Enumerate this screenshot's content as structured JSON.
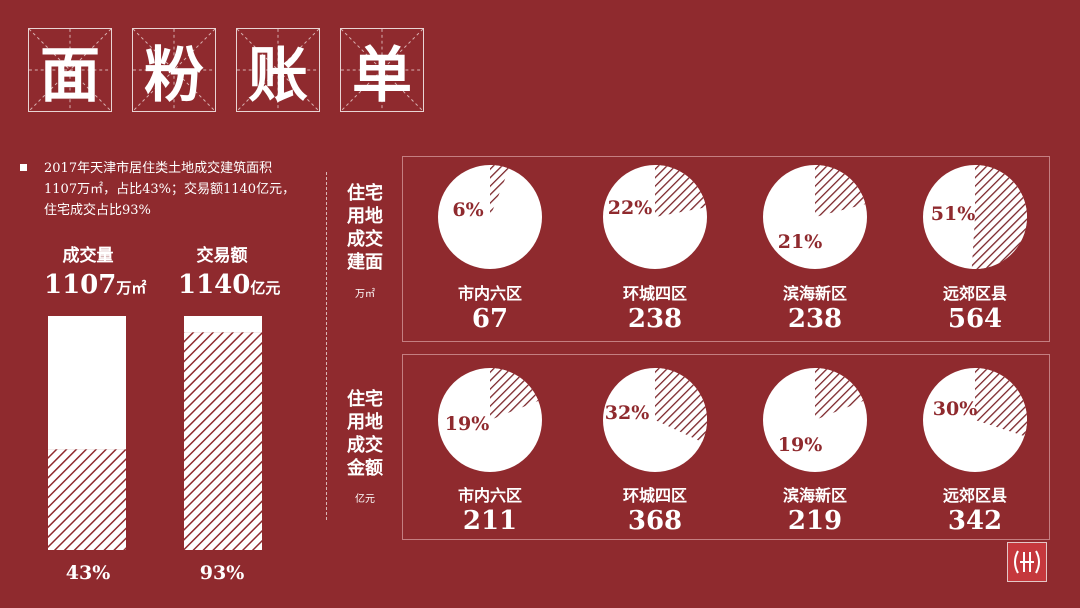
{
  "title_chars": [
    "面",
    "粉",
    "账",
    "单"
  ],
  "description": "2017年天津市居住类土地成交建筑面积1107万㎡，占比43%；交易额1140亿元，住宅成交占比93%",
  "colors": {
    "background": "#8f2a2e",
    "white": "#ffffff",
    "hatch": "#7a2428"
  },
  "left_stats": [
    {
      "label": "成交量",
      "value": "1107",
      "unit": "万㎡",
      "percent": "43%",
      "ratio": 0.43
    },
    {
      "label": "交易额",
      "value": "1140",
      "unit": "亿元",
      "percent": "93%",
      "ratio": 0.93
    }
  ],
  "sections": [
    {
      "label": "住宅用地成交建面",
      "unit": "万㎡"
    },
    {
      "label": "住宅用地成交金额",
      "unit": "亿元"
    }
  ],
  "chart_data": [
    {
      "type": "pie",
      "title": "住宅用地成交建面",
      "unit": "万㎡",
      "categories": [
        "市内六区",
        "环城四区",
        "滨海新区",
        "远郊区县"
      ],
      "values": [
        67,
        238,
        238,
        564
      ],
      "percent_labels": [
        "6%",
        "22%",
        "21%",
        "51%"
      ],
      "shares": [
        0.06,
        0.22,
        0.21,
        0.51
      ]
    },
    {
      "type": "pie",
      "title": "住宅用地成交金额",
      "unit": "亿元",
      "categories": [
        "市内六区",
        "环城四区",
        "滨海新区",
        "远郊区县"
      ],
      "values": [
        211,
        368,
        219,
        342
      ],
      "percent_labels": [
        "19%",
        "32%",
        "19%",
        "30%"
      ],
      "shares": [
        0.19,
        0.32,
        0.19,
        0.3
      ]
    }
  ]
}
